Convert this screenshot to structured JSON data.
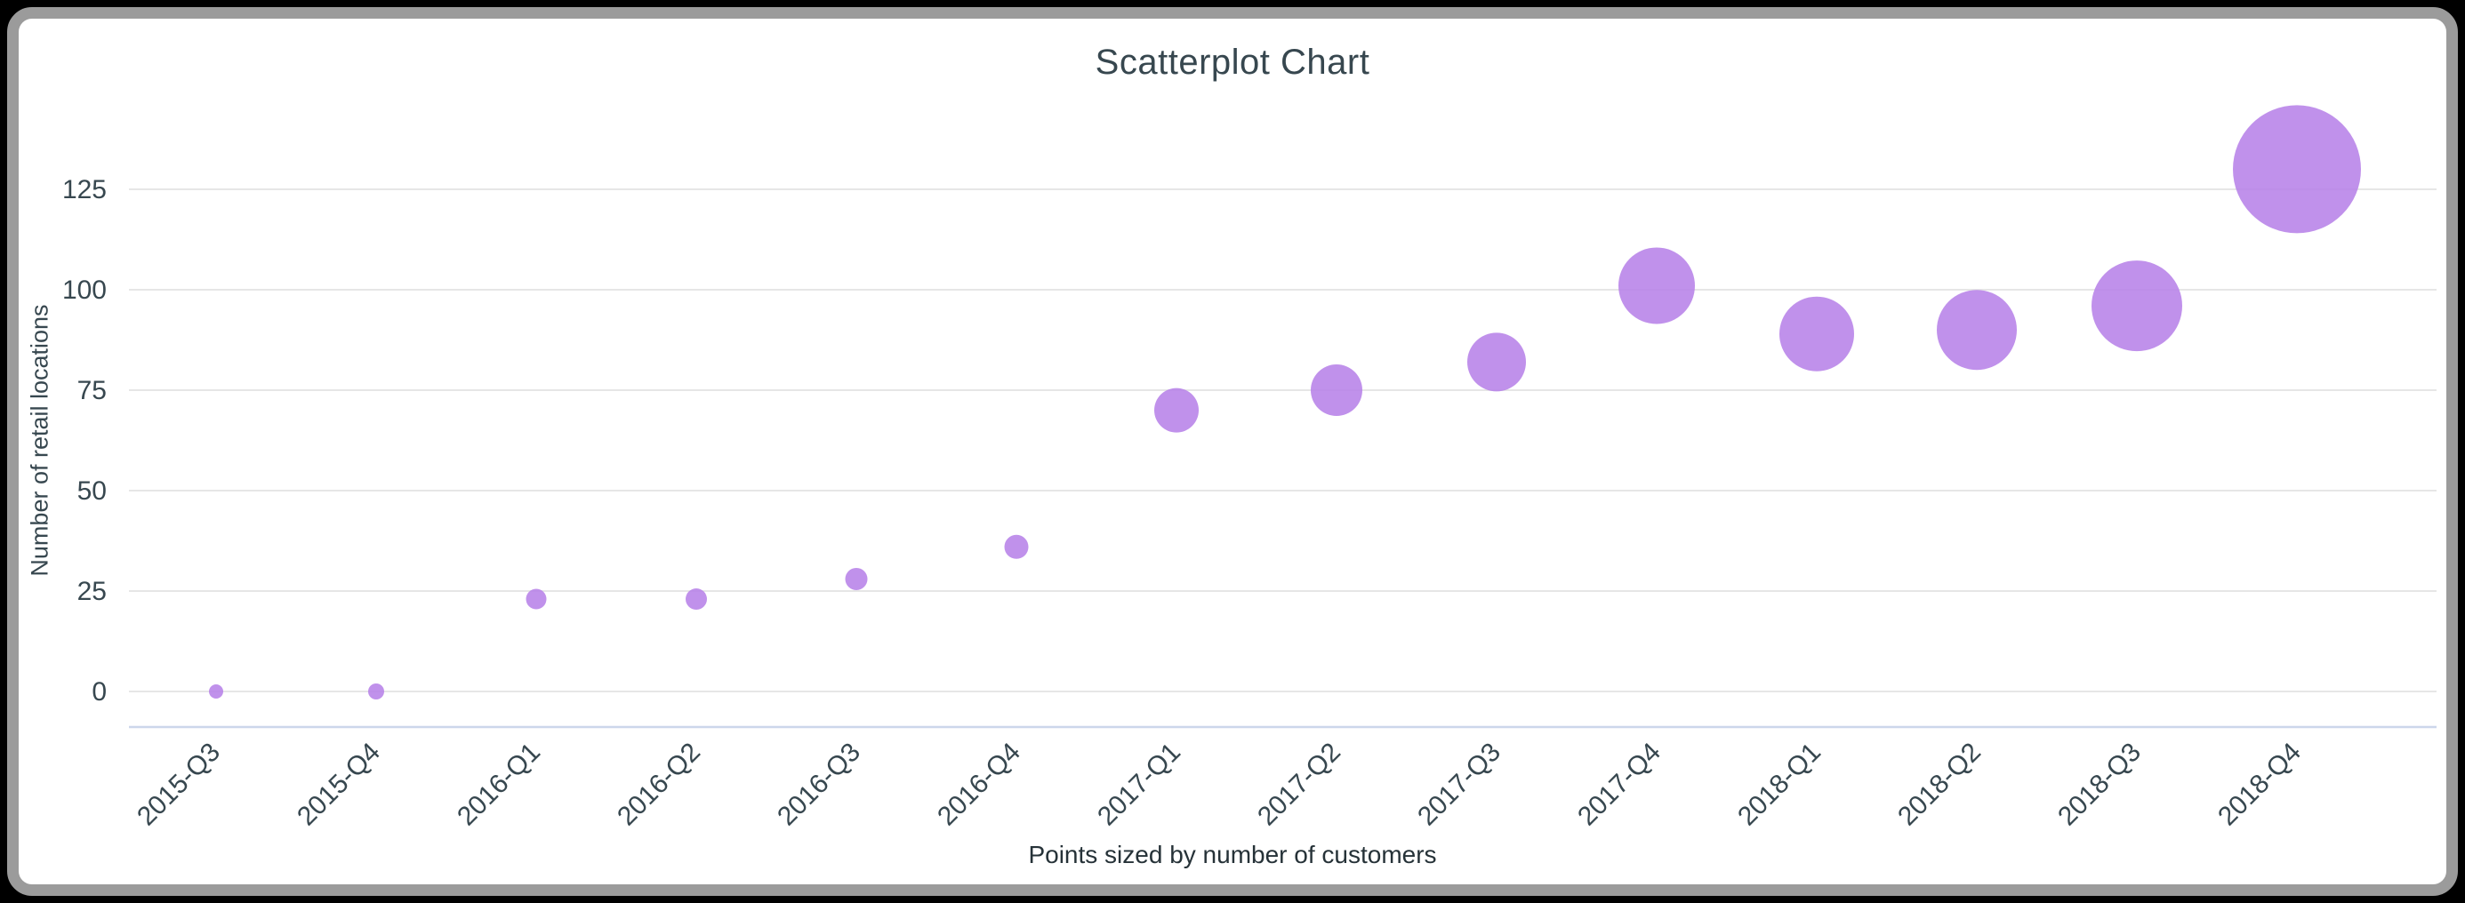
{
  "window": {
    "background_color": "#000000",
    "frame_color": "#9b9b9b",
    "card_background": "#ffffff"
  },
  "chart_data": {
    "type": "scatter",
    "title": "Scatterplot Chart",
    "ylabel": "Number of retail locations",
    "xlabel": "",
    "caption": "Points sized by number of customers",
    "legend": "none",
    "grid": "horizontal",
    "categories": [
      "2015-Q3",
      "2015-Q4",
      "2016-Q1",
      "2016-Q2",
      "2016-Q3",
      "2016-Q4",
      "2017-Q1",
      "2017-Q2",
      "2017-Q3",
      "2017-Q4",
      "2018-Q1",
      "2018-Q2",
      "2018-Q3",
      "2018-Q4"
    ],
    "series": [
      {
        "name": "Number of retail locations",
        "values": [
          0,
          0,
          23,
          23,
          28,
          36,
          70,
          75,
          82,
          101,
          89,
          90,
          96,
          130
        ],
        "point_radius_px": [
          8,
          9,
          11.5,
          12,
          12.5,
          13.5,
          25,
          29,
          33,
          43,
          42,
          45,
          51,
          72
        ],
        "size_encodes": "number of customers"
      }
    ],
    "yticks": [
      0,
      25,
      50,
      75,
      100,
      125
    ],
    "ylim": [
      0,
      141
    ],
    "marker_color": "#b57ee8",
    "marker_opacity": 0.85,
    "gridline_color": "#e6e6e6",
    "axis_line_color": "#ccd6eb",
    "text_color": "#37474f",
    "x_label_rotation_deg": -45
  }
}
